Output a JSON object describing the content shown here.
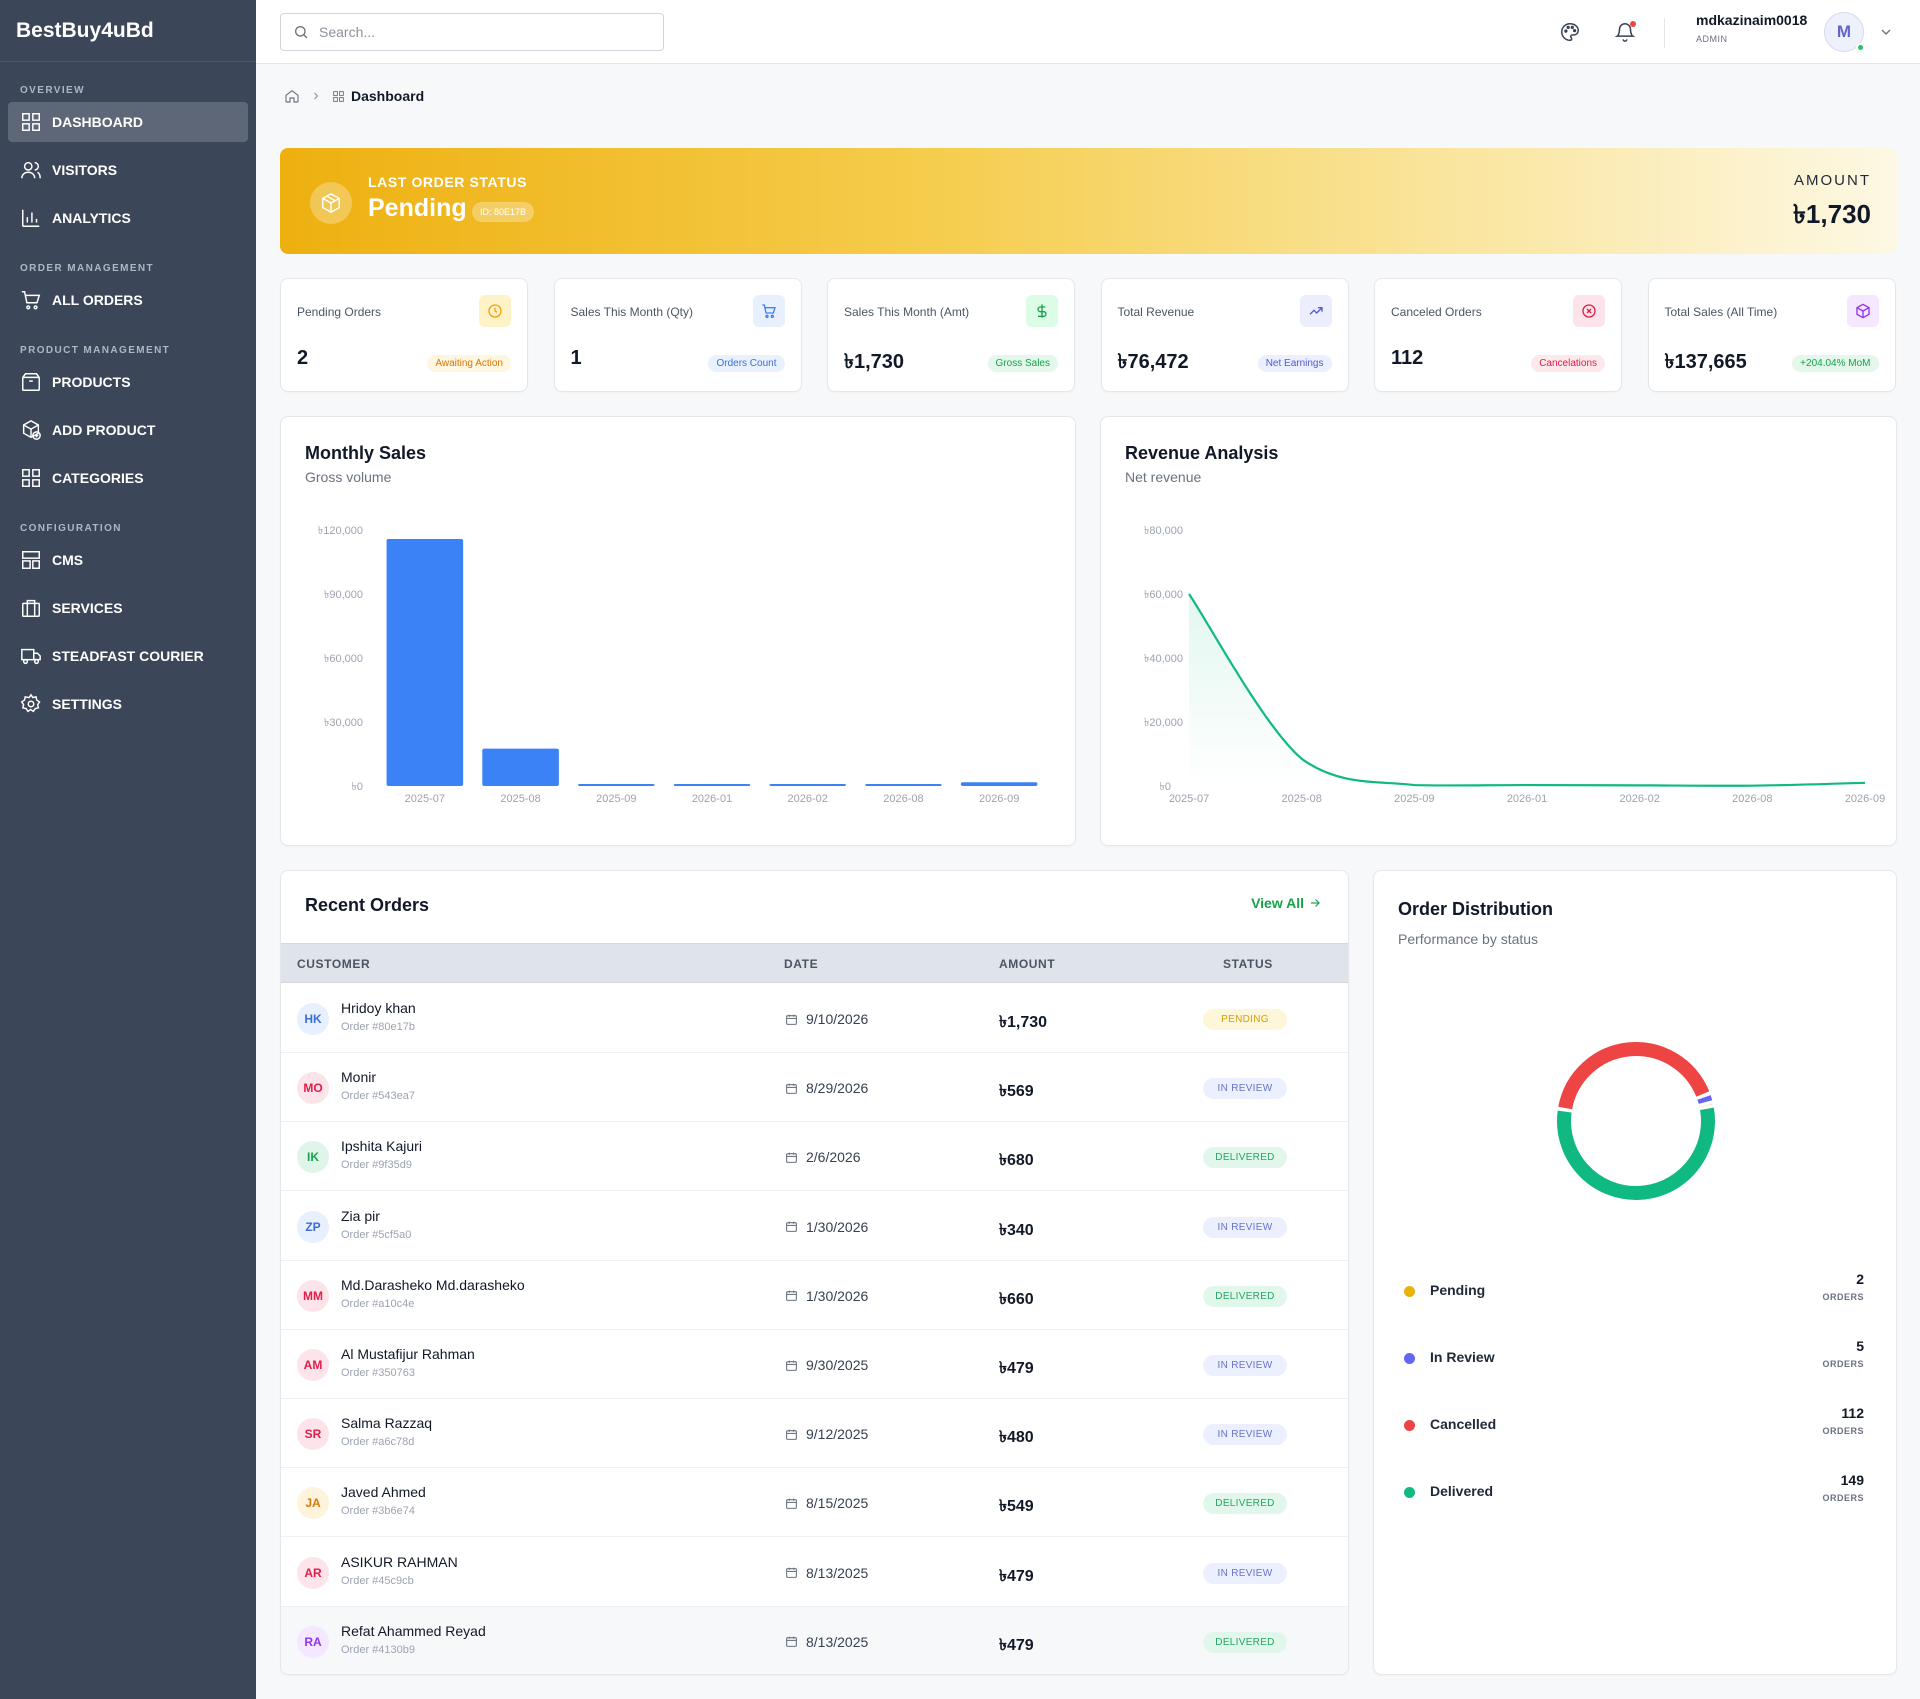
{
  "brand": "BestBuy4uBd",
  "sidebar": {
    "sections": [
      {
        "title": "OVERVIEW",
        "items": [
          {
            "label": "DASHBOARD",
            "icon": "grid-icon",
            "active": true
          },
          {
            "label": "VISITORS",
            "icon": "users-icon"
          },
          {
            "label": "ANALYTICS",
            "icon": "bar-chart-icon"
          }
        ]
      },
      {
        "title": "ORDER MANAGEMENT",
        "items": [
          {
            "label": "ALL ORDERS",
            "icon": "cart-icon"
          }
        ]
      },
      {
        "title": "PRODUCT MANAGEMENT",
        "items": [
          {
            "label": "PRODUCTS",
            "icon": "box-icon"
          },
          {
            "label": "ADD PRODUCT",
            "icon": "add-product-icon"
          },
          {
            "label": "CATEGORIES",
            "icon": "grid-icon"
          }
        ]
      },
      {
        "title": "CONFIGURATION",
        "items": [
          {
            "label": "CMS",
            "icon": "layout-icon"
          },
          {
            "label": "SERVICES",
            "icon": "briefcase-icon"
          },
          {
            "label": "STEADFAST COURIER",
            "icon": "truck-icon"
          },
          {
            "label": "SETTINGS",
            "icon": "gear-icon"
          }
        ]
      }
    ]
  },
  "header": {
    "search_placeholder": "Search...",
    "user_name": "mdkazinaim0018",
    "user_role": "ADMIN",
    "avatar_initial": "M"
  },
  "breadcrumb": {
    "current": "Dashboard"
  },
  "banner": {
    "label": "LAST ORDER STATUS",
    "status": "Pending",
    "order_id": "ID: 80E17B",
    "amount_label": "AMOUNT",
    "amount": "৳1,730"
  },
  "stats": [
    {
      "label": "Pending Orders",
      "value": "2",
      "tag": "Awaiting Action",
      "icon": "clock-icon",
      "color": "#f59e0b",
      "bg": "#fef3c7",
      "tag_bg": "#fef6e0",
      "tag_color": "#d97706"
    },
    {
      "label": "Sales This Month (Qty)",
      "value": "1",
      "tag": "Orders Count",
      "icon": "cart-icon",
      "color": "#3b82f6",
      "bg": "#e8f0fe",
      "tag_bg": "#eaf1fe",
      "tag_color": "#3b6fd6"
    },
    {
      "label": "Sales This Month (Amt)",
      "value": "৳1,730",
      "tag": "Gross Sales",
      "icon": "dollar-icon",
      "color": "#16a34a",
      "bg": "#dcfce7",
      "tag_bg": "#e3f7ea",
      "tag_color": "#16a34a"
    },
    {
      "label": "Total Revenue",
      "value": "৳76,472",
      "tag": "Net Earnings",
      "icon": "trending-up-icon",
      "color": "#4f5bd5",
      "bg": "#eceefd",
      "tag_bg": "#eceffd",
      "tag_color": "#4f5bd5"
    },
    {
      "label": "Canceled Orders",
      "value": "112",
      "tag": "Cancelations",
      "icon": "x-circle-icon",
      "color": "#e11d48",
      "bg": "#fde4ea",
      "tag_bg": "#fde8ec",
      "tag_color": "#e11d48"
    },
    {
      "label": "Total Sales (All Time)",
      "value": "৳137,665",
      "tag": "+204.04% MoM",
      "icon": "cube-icon",
      "color": "#9333ea",
      "bg": "#f3e8ff",
      "tag_bg": "#e3f7ea",
      "tag_color": "#16a34a"
    }
  ],
  "monthly_sales": {
    "title": "Monthly Sales",
    "subtitle": "Gross volume",
    "chart_data": {
      "type": "bar",
      "categories": [
        "2025-07",
        "2025-08",
        "2025-09",
        "2026-01",
        "2026-02",
        "2026-08",
        "2026-09"
      ],
      "values": [
        115800,
        17500,
        600,
        500,
        400,
        300,
        1730
      ],
      "ylim": [
        0,
        120000
      ],
      "yticks": [
        0,
        30000,
        60000,
        90000,
        120000
      ],
      "ytick_labels": [
        "৳0",
        "৳30,000",
        "৳60,000",
        "৳90,000",
        "৳120,000"
      ],
      "color": "#3b82f6"
    }
  },
  "revenue_analysis": {
    "title": "Revenue Analysis",
    "subtitle": "Net revenue",
    "chart_data": {
      "type": "area",
      "categories": [
        "2025-07",
        "2025-08",
        "2025-09",
        "2026-01",
        "2026-02",
        "2026-08",
        "2026-09"
      ],
      "values": [
        60000,
        8500,
        300,
        300,
        200,
        100,
        1000
      ],
      "ylim": [
        0,
        80000
      ],
      "yticks": [
        0,
        20000,
        40000,
        60000,
        80000
      ],
      "ytick_labels": [
        "৳0",
        "৳20,000",
        "৳40,000",
        "৳60,000",
        "৳80,000"
      ],
      "color": "#10b981"
    }
  },
  "recent_orders": {
    "title": "Recent Orders",
    "view_all": "View All",
    "columns": [
      "CUSTOMER",
      "DATE",
      "AMOUNT",
      "STATUS"
    ],
    "rows": [
      {
        "initials": "HK",
        "name": "Hridoy khan",
        "order": "Order #80e17b",
        "date": "9/10/2026",
        "amount": "৳1,730",
        "status": "PENDING",
        "kind": "pending",
        "av_bg": "#e8effd",
        "av_color": "#3b6fd6"
      },
      {
        "initials": "MO",
        "name": "Monir",
        "order": "Order #543ea7",
        "date": "8/29/2026",
        "amount": "৳569",
        "status": "IN REVIEW",
        "kind": "review",
        "av_bg": "#fde4ea",
        "av_color": "#e11d48"
      },
      {
        "initials": "IK",
        "name": "Ipshita Kajuri",
        "order": "Order #9f35d9",
        "date": "2/6/2026",
        "amount": "৳680",
        "status": "DELIVERED",
        "kind": "delivered",
        "av_bg": "#e0f5ea",
        "av_color": "#16a34a"
      },
      {
        "initials": "ZP",
        "name": "Zia pir",
        "order": "Order #5cf5a0",
        "date": "1/30/2026",
        "amount": "৳340",
        "status": "IN REVIEW",
        "kind": "review",
        "av_bg": "#e8effd",
        "av_color": "#3b6fd6"
      },
      {
        "initials": "MM",
        "name": "Md.Darasheko Md.darasheko",
        "order": "Order #a10c4e",
        "date": "1/30/2026",
        "amount": "৳660",
        "status": "DELIVERED",
        "kind": "delivered",
        "av_bg": "#fde4ea",
        "av_color": "#e11d48"
      },
      {
        "initials": "AM",
        "name": "Al Mustafijur Rahman",
        "order": "Order #350763",
        "date": "9/30/2025",
        "amount": "৳479",
        "status": "IN REVIEW",
        "kind": "review",
        "av_bg": "#fde4ea",
        "av_color": "#e11d48"
      },
      {
        "initials": "SR",
        "name": "Salma Razzaq",
        "order": "Order #a6c78d",
        "date": "9/12/2025",
        "amount": "৳480",
        "status": "IN REVIEW",
        "kind": "review",
        "av_bg": "#fde4ea",
        "av_color": "#e11d48"
      },
      {
        "initials": "JA",
        "name": "Javed Ahmed",
        "order": "Order #3b6e74",
        "date": "8/15/2025",
        "amount": "৳549",
        "status": "DELIVERED",
        "kind": "delivered",
        "av_bg": "#fef4dc",
        "av_color": "#d97706"
      },
      {
        "initials": "AR",
        "name": "ASIKUR RAHMAN",
        "order": "Order #45c9cb",
        "date": "8/13/2025",
        "amount": "৳479",
        "status": "IN REVIEW",
        "kind": "review",
        "av_bg": "#fde4ea",
        "av_color": "#e11d48"
      },
      {
        "initials": "RA",
        "name": "Refat Ahammed Reyad",
        "order": "Order #4130b9",
        "date": "8/13/2025",
        "amount": "৳479",
        "status": "DELIVERED",
        "kind": "delivered",
        "av_bg": "#f3e8ff",
        "av_color": "#9333ea"
      }
    ]
  },
  "order_distribution": {
    "title": "Order Distribution",
    "subtitle": "Performance by status",
    "unit_label": "ORDERS",
    "chart_data": {
      "type": "pie",
      "labels": [
        "Pending",
        "In Review",
        "Cancelled",
        "Delivered"
      ],
      "values": [
        2,
        5,
        112,
        149
      ],
      "colors": [
        "#eab308",
        "#6366f1",
        "#ef4444",
        "#10b981"
      ]
    }
  }
}
